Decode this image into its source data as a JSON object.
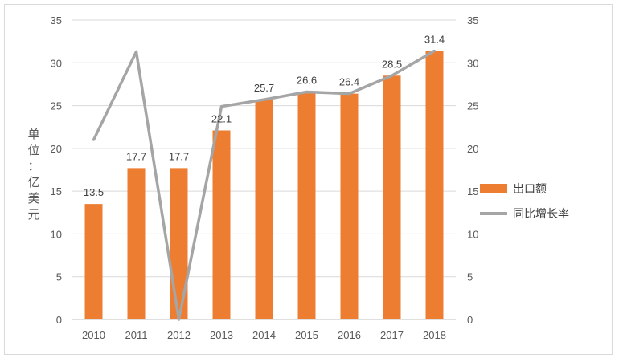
{
  "chart_data": {
    "type": "bar",
    "categories": [
      "2010",
      "2011",
      "2012",
      "2013",
      "2014",
      "2015",
      "2016",
      "2017",
      "2018"
    ],
    "series": [
      {
        "name": "出口额",
        "type": "bar",
        "axis": "left",
        "color": "#ED7D31",
        "values": [
          13.5,
          17.7,
          17.7,
          22.1,
          25.7,
          26.6,
          26.4,
          28.5,
          31.4
        ],
        "data_labels": [
          "13.5",
          "17.7",
          "17.7",
          "22.1",
          "25.7",
          "26.6",
          "26.4",
          "28.5",
          "31.4"
        ]
      },
      {
        "name": "同比增长率",
        "type": "line",
        "axis": "right",
        "color": "#A5A5A5",
        "values": [
          21,
          31.3,
          0,
          24.9,
          25.7,
          26.6,
          26.4,
          28.5,
          31.4
        ]
      }
    ],
    "ylabel": "单位：亿美元",
    "ylim": [
      0,
      35
    ],
    "y2lim": [
      0,
      35
    ],
    "yticks": [
      "0",
      "5",
      "10",
      "15",
      "20",
      "25",
      "30",
      "35"
    ],
    "y2ticks": [
      "0",
      "5",
      "10",
      "15",
      "20",
      "25",
      "30",
      "35"
    ],
    "grid": true,
    "legend_position": "right"
  }
}
